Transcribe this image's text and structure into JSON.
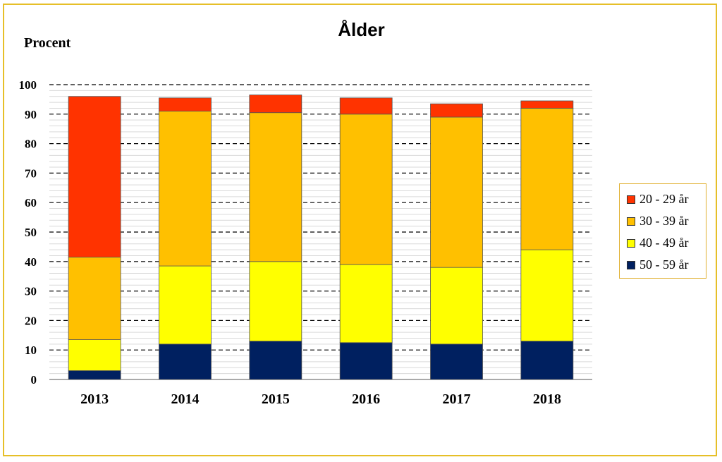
{
  "chart_data": {
    "type": "bar",
    "stacked": true,
    "title": "Ålder",
    "ylabel": "Procent",
    "xlabel": "",
    "ylim": [
      0,
      100
    ],
    "yticks": [
      "0",
      "10",
      "20",
      "30",
      "40",
      "50",
      "60",
      "70",
      "80",
      "90",
      "100"
    ],
    "categories": [
      "2013",
      "2014",
      "2015",
      "2016",
      "2017",
      "2018"
    ],
    "series": [
      {
        "name": "50 - 59 år",
        "color": "#002060",
        "values": [
          3,
          12,
          13,
          12.5,
          12,
          13
        ]
      },
      {
        "name": "40 - 49 år",
        "color": "#FFFF00",
        "values": [
          10.5,
          26.5,
          27,
          26.5,
          26,
          31
        ]
      },
      {
        "name": "30 - 39 år",
        "color": "#FFC000",
        "values": [
          28,
          52.5,
          50.5,
          51,
          51,
          48
        ]
      },
      {
        "name": "20 - 29 år",
        "color": "#FF3300",
        "values": [
          54.5,
          4.5,
          6,
          5.5,
          4.5,
          2.5
        ]
      }
    ],
    "legend_order": [
      "20 - 29 år",
      "30 - 39 år",
      "40 - 49 år",
      "50 - 59 år"
    ],
    "legend_position": "right",
    "grid": true
  }
}
